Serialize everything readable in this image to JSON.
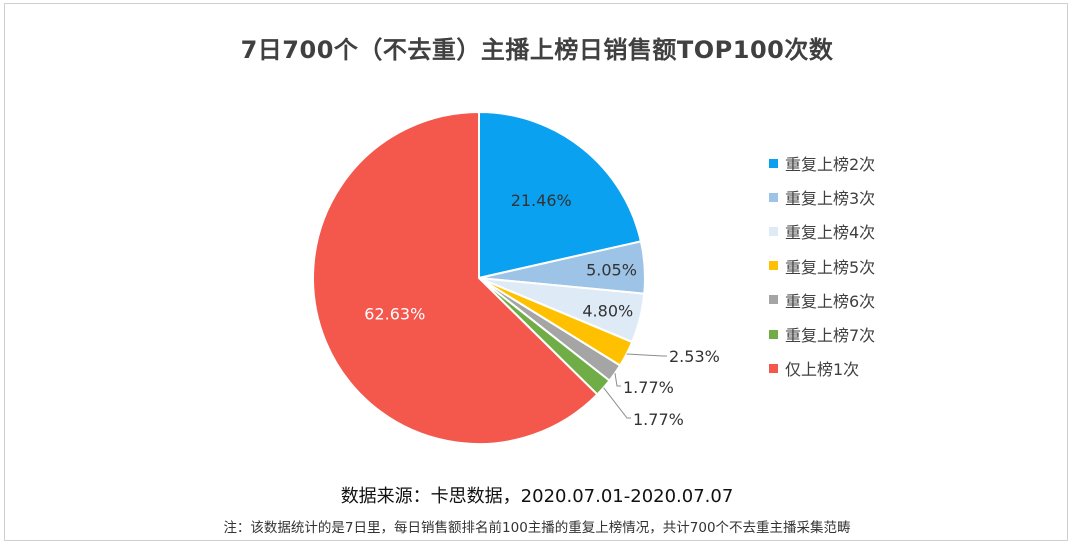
{
  "chart_data": {
    "type": "pie",
    "title": "7日700个（不去重）主播上榜日销售额TOP100次数",
    "start_angle_deg": 0,
    "direction": "clockwise",
    "legend_position": "right",
    "slices": [
      {
        "label": "重复上榜2次",
        "value": 21.46,
        "display": "21.46%",
        "color": "#0aa1f0"
      },
      {
        "label": "重复上榜3次",
        "value": 5.05,
        "display": "5.05%",
        "color": "#9dc3e6"
      },
      {
        "label": "重复上榜4次",
        "value": 4.8,
        "display": "4.80%",
        "color": "#deebf7"
      },
      {
        "label": "重复上榜5次",
        "value": 2.53,
        "display": "2.53%",
        "color": "#ffc000"
      },
      {
        "label": "重复上榜6次",
        "value": 1.77,
        "display": "1.77%",
        "color": "#a5a5a5"
      },
      {
        "label": "重复上榜7次",
        "value": 1.77,
        "display": "1.77%",
        "color": "#70ad47"
      },
      {
        "label": "仅上榜1次",
        "value": 62.63,
        "display": "62.63%",
        "color": "#f4574c"
      }
    ]
  },
  "footer": {
    "source": "数据来源：卡思数据，2020.07.01-2020.07.07",
    "note": "注：该数据统计的是7日里，每日销售额排名前100主播的重复上榜情况，共计700个不去重主播采集范畴"
  }
}
